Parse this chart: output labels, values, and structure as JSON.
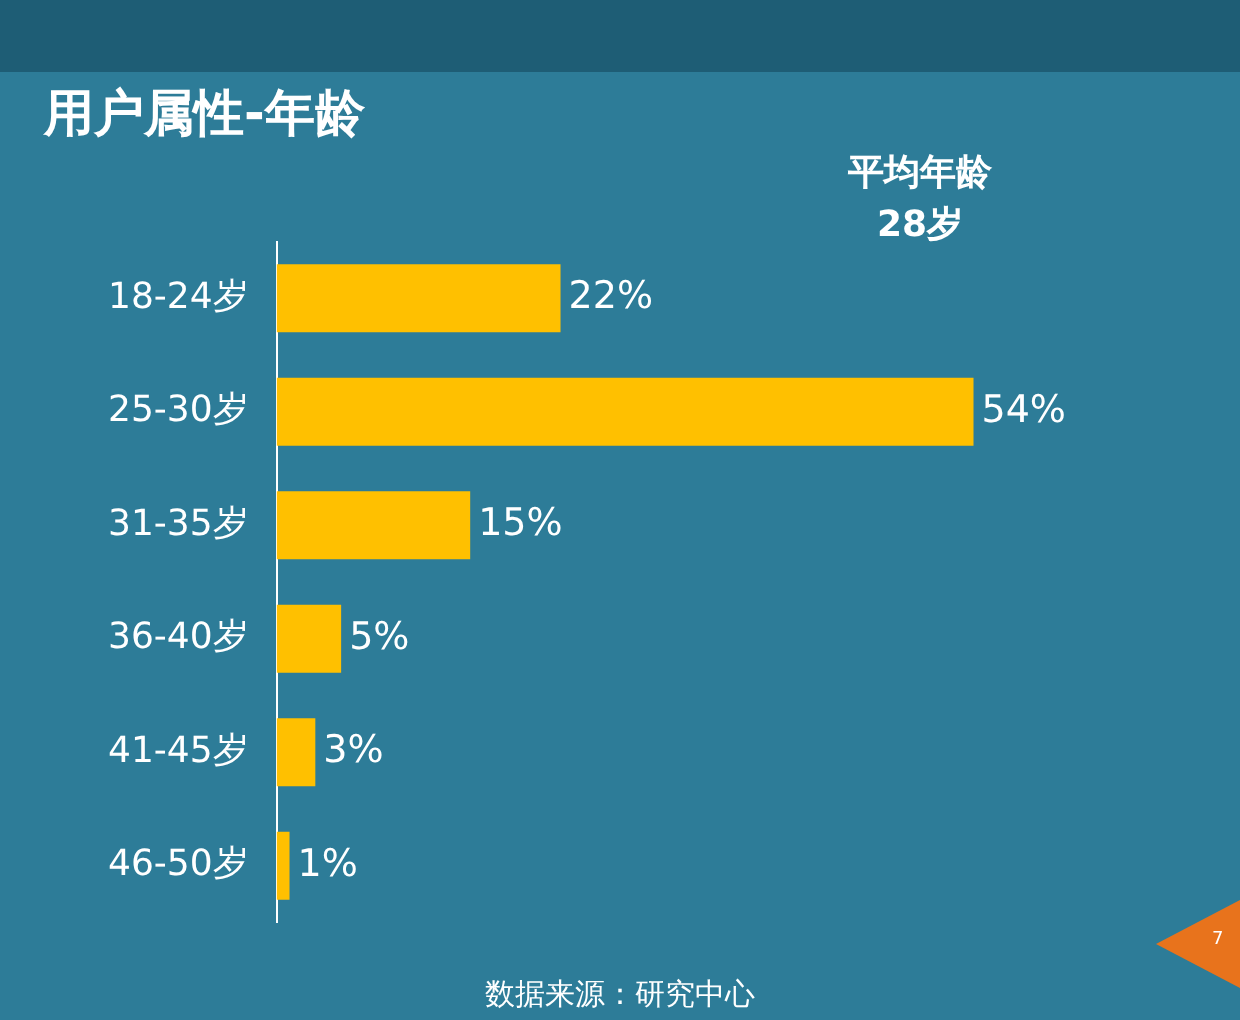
{
  "chart_data": {
    "type": "bar",
    "orientation": "horizontal",
    "title": "用户属性-年龄",
    "categories": [
      "18-24岁",
      "25-30岁",
      "31-35岁",
      "36-40岁",
      "41-45岁",
      "46-50岁"
    ],
    "values": [
      22,
      54,
      15,
      5,
      3,
      1
    ],
    "color": "#ffc000",
    "value_labels": [
      "22%",
      "54%",
      "15%",
      "5%",
      "3%",
      "1%"
    ],
    "legend": false,
    "annotations": [
      "平均年龄",
      "28岁",
      "数据来源：研究中心",
      "7"
    ]
  }
}
